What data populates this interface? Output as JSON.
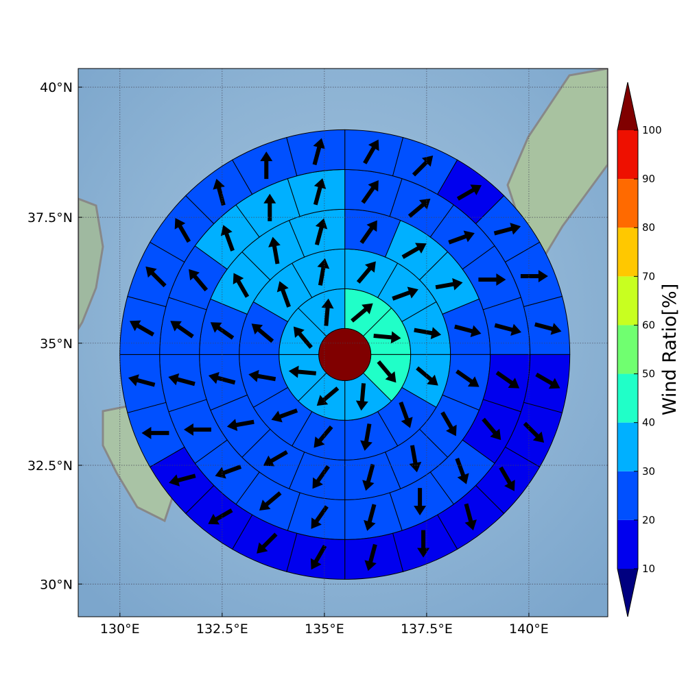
{
  "chart_data": {
    "type": "polar-grid-map",
    "projection": "mercator",
    "xlim": [
      128.98,
      141.93
    ],
    "ylim": [
      29.3,
      40.35
    ],
    "xticks": [
      {
        "value": 130,
        "label": "130°E"
      },
      {
        "value": 132.5,
        "label": "132.5°E"
      },
      {
        "value": 135,
        "label": "135°E"
      },
      {
        "value": 137.5,
        "label": "137.5°E"
      },
      {
        "value": 140,
        "label": "140°E"
      }
    ],
    "yticks": [
      {
        "value": 30,
        "label": "30°N"
      },
      {
        "value": 32.5,
        "label": "32.5°N"
      },
      {
        "value": 35,
        "label": "35°N"
      },
      {
        "value": 37.5,
        "label": "37.5°N"
      },
      {
        "value": 40,
        "label": "40°N"
      }
    ],
    "grid": true,
    "center": [
      135.5,
      34.77
    ],
    "center_value": 105,
    "rings": [
      {
        "values": [
          45,
          45,
          45,
          35,
          35,
          35,
          35,
          35
        ],
        "directions": [
          50,
          95,
          140,
          185,
          230,
          275,
          320,
          5
        ]
      },
      {
        "values": [
          35,
          35,
          35,
          35,
          25,
          25,
          25,
          25,
          25,
          25,
          35,
          35
        ],
        "directions": [
          40,
          70,
          100,
          130,
          160,
          190,
          220,
          250,
          280,
          310,
          340,
          10
        ]
      },
      {
        "values": [
          25,
          35,
          35,
          25,
          25,
          25,
          25,
          25,
          25,
          25,
          25,
          25,
          25,
          35,
          35,
          35
        ],
        "directions": [
          35,
          60,
          80,
          105,
          125,
          150,
          170,
          195,
          215,
          240,
          260,
          285,
          305,
          330,
          350,
          15
        ]
      },
      {
        "values": [
          25,
          25,
          25,
          25,
          25,
          15,
          15,
          25,
          25,
          25,
          25,
          25,
          25,
          25,
          25,
          25,
          25,
          35,
          35,
          35
        ],
        "directions": [
          35,
          50,
          70,
          90,
          105,
          125,
          140,
          160,
          180,
          195,
          215,
          230,
          250,
          270,
          285,
          305,
          320,
          340,
          0,
          15
        ]
      },
      {
        "values": [
          25,
          25,
          15,
          25,
          25,
          25,
          15,
          15,
          15,
          15,
          15,
          15,
          15,
          15,
          15,
          15,
          25,
          25,
          25,
          25,
          25,
          25,
          25,
          25
        ],
        "directions": [
          30,
          45,
          60,
          75,
          90,
          105,
          120,
          135,
          150,
          165,
          180,
          195,
          210,
          225,
          240,
          255,
          270,
          285,
          300,
          315,
          330,
          345,
          0,
          15
        ]
      }
    ],
    "colorbar": {
      "label": "Wind Ratio[%]",
      "ticks": [
        10,
        20,
        30,
        40,
        50,
        60,
        70,
        80,
        90,
        100
      ],
      "colors": [
        "#0000ee",
        "#0050ff",
        "#00b0ff",
        "#20ffc8",
        "#70ff70",
        "#c8ff20",
        "#ffc800",
        "#ff6a00",
        "#ee1000"
      ],
      "under_color": "#000080",
      "over_color": "#800000"
    }
  }
}
